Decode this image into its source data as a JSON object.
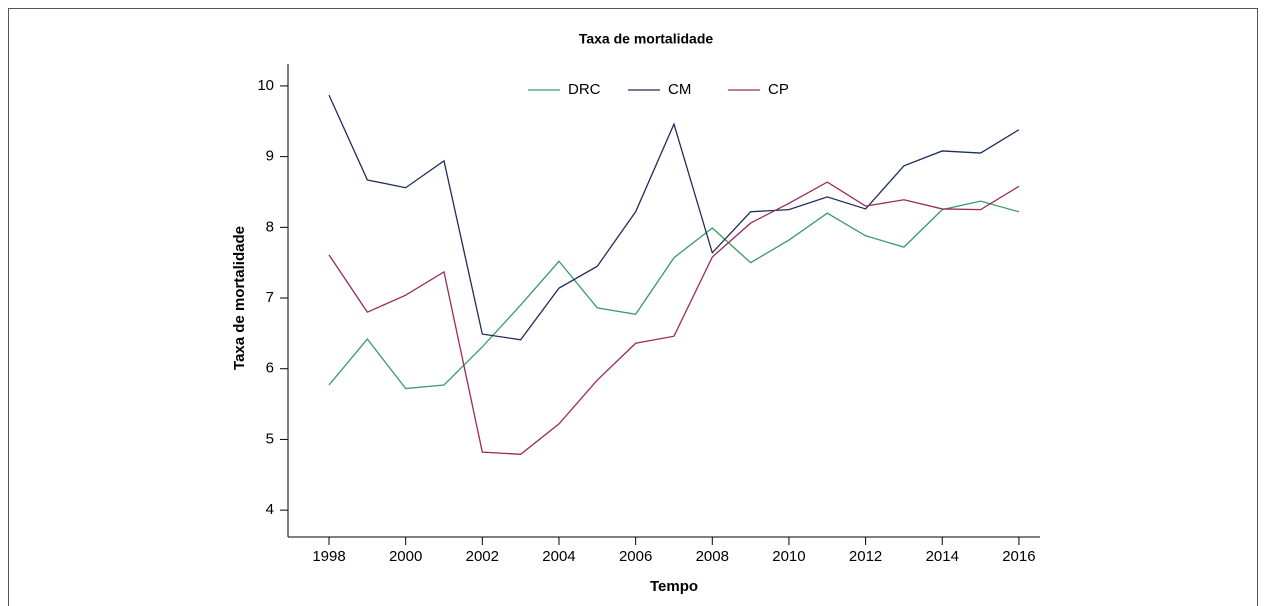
{
  "chart_data": {
    "type": "line",
    "title": "Taxa de mortalidade",
    "xlabel": "Tempo",
    "ylabel": "Taxa de mortalidade",
    "x": [
      1998,
      1999,
      2000,
      2001,
      2002,
      2003,
      2004,
      2005,
      2006,
      2007,
      2008,
      2009,
      2010,
      2011,
      2012,
      2013,
      2014,
      2015,
      2016
    ],
    "series": [
      {
        "name": "DRC",
        "color": "#3a9a6a",
        "values": [
          5.77,
          6.42,
          5.72,
          5.77,
          6.31,
          6.9,
          7.52,
          6.86,
          6.77,
          7.57,
          7.99,
          7.5,
          7.82,
          8.2,
          7.88,
          7.72,
          8.25,
          8.37,
          8.22
        ]
      },
      {
        "name": "CM",
        "color": "#1f2d5a",
        "values": [
          9.87,
          8.67,
          8.56,
          8.94,
          6.49,
          6.41,
          7.14,
          7.45,
          8.22,
          9.46,
          7.64,
          8.22,
          8.25,
          8.43,
          8.26,
          8.87,
          9.08,
          9.05,
          9.38
        ]
      },
      {
        "name": "CP",
        "color": "#9b2a5a",
        "values": [
          7.61,
          6.8,
          7.04,
          7.37,
          4.82,
          4.79,
          5.22,
          5.84,
          6.36,
          6.46,
          7.58,
          8.06,
          8.34,
          8.64,
          8.3,
          8.39,
          8.26,
          8.25,
          8.58
        ]
      }
    ],
    "xlim": [
      1996.93,
      2016.55
    ],
    "xticks": [
      1998,
      2000,
      2002,
      2004,
      2006,
      2008,
      2010,
      2012,
      2014,
      2016
    ],
    "ylim": [
      3.62,
      10.31
    ],
    "yticks": [
      4,
      5,
      6,
      7,
      8,
      9,
      10
    ],
    "legend": "top"
  }
}
